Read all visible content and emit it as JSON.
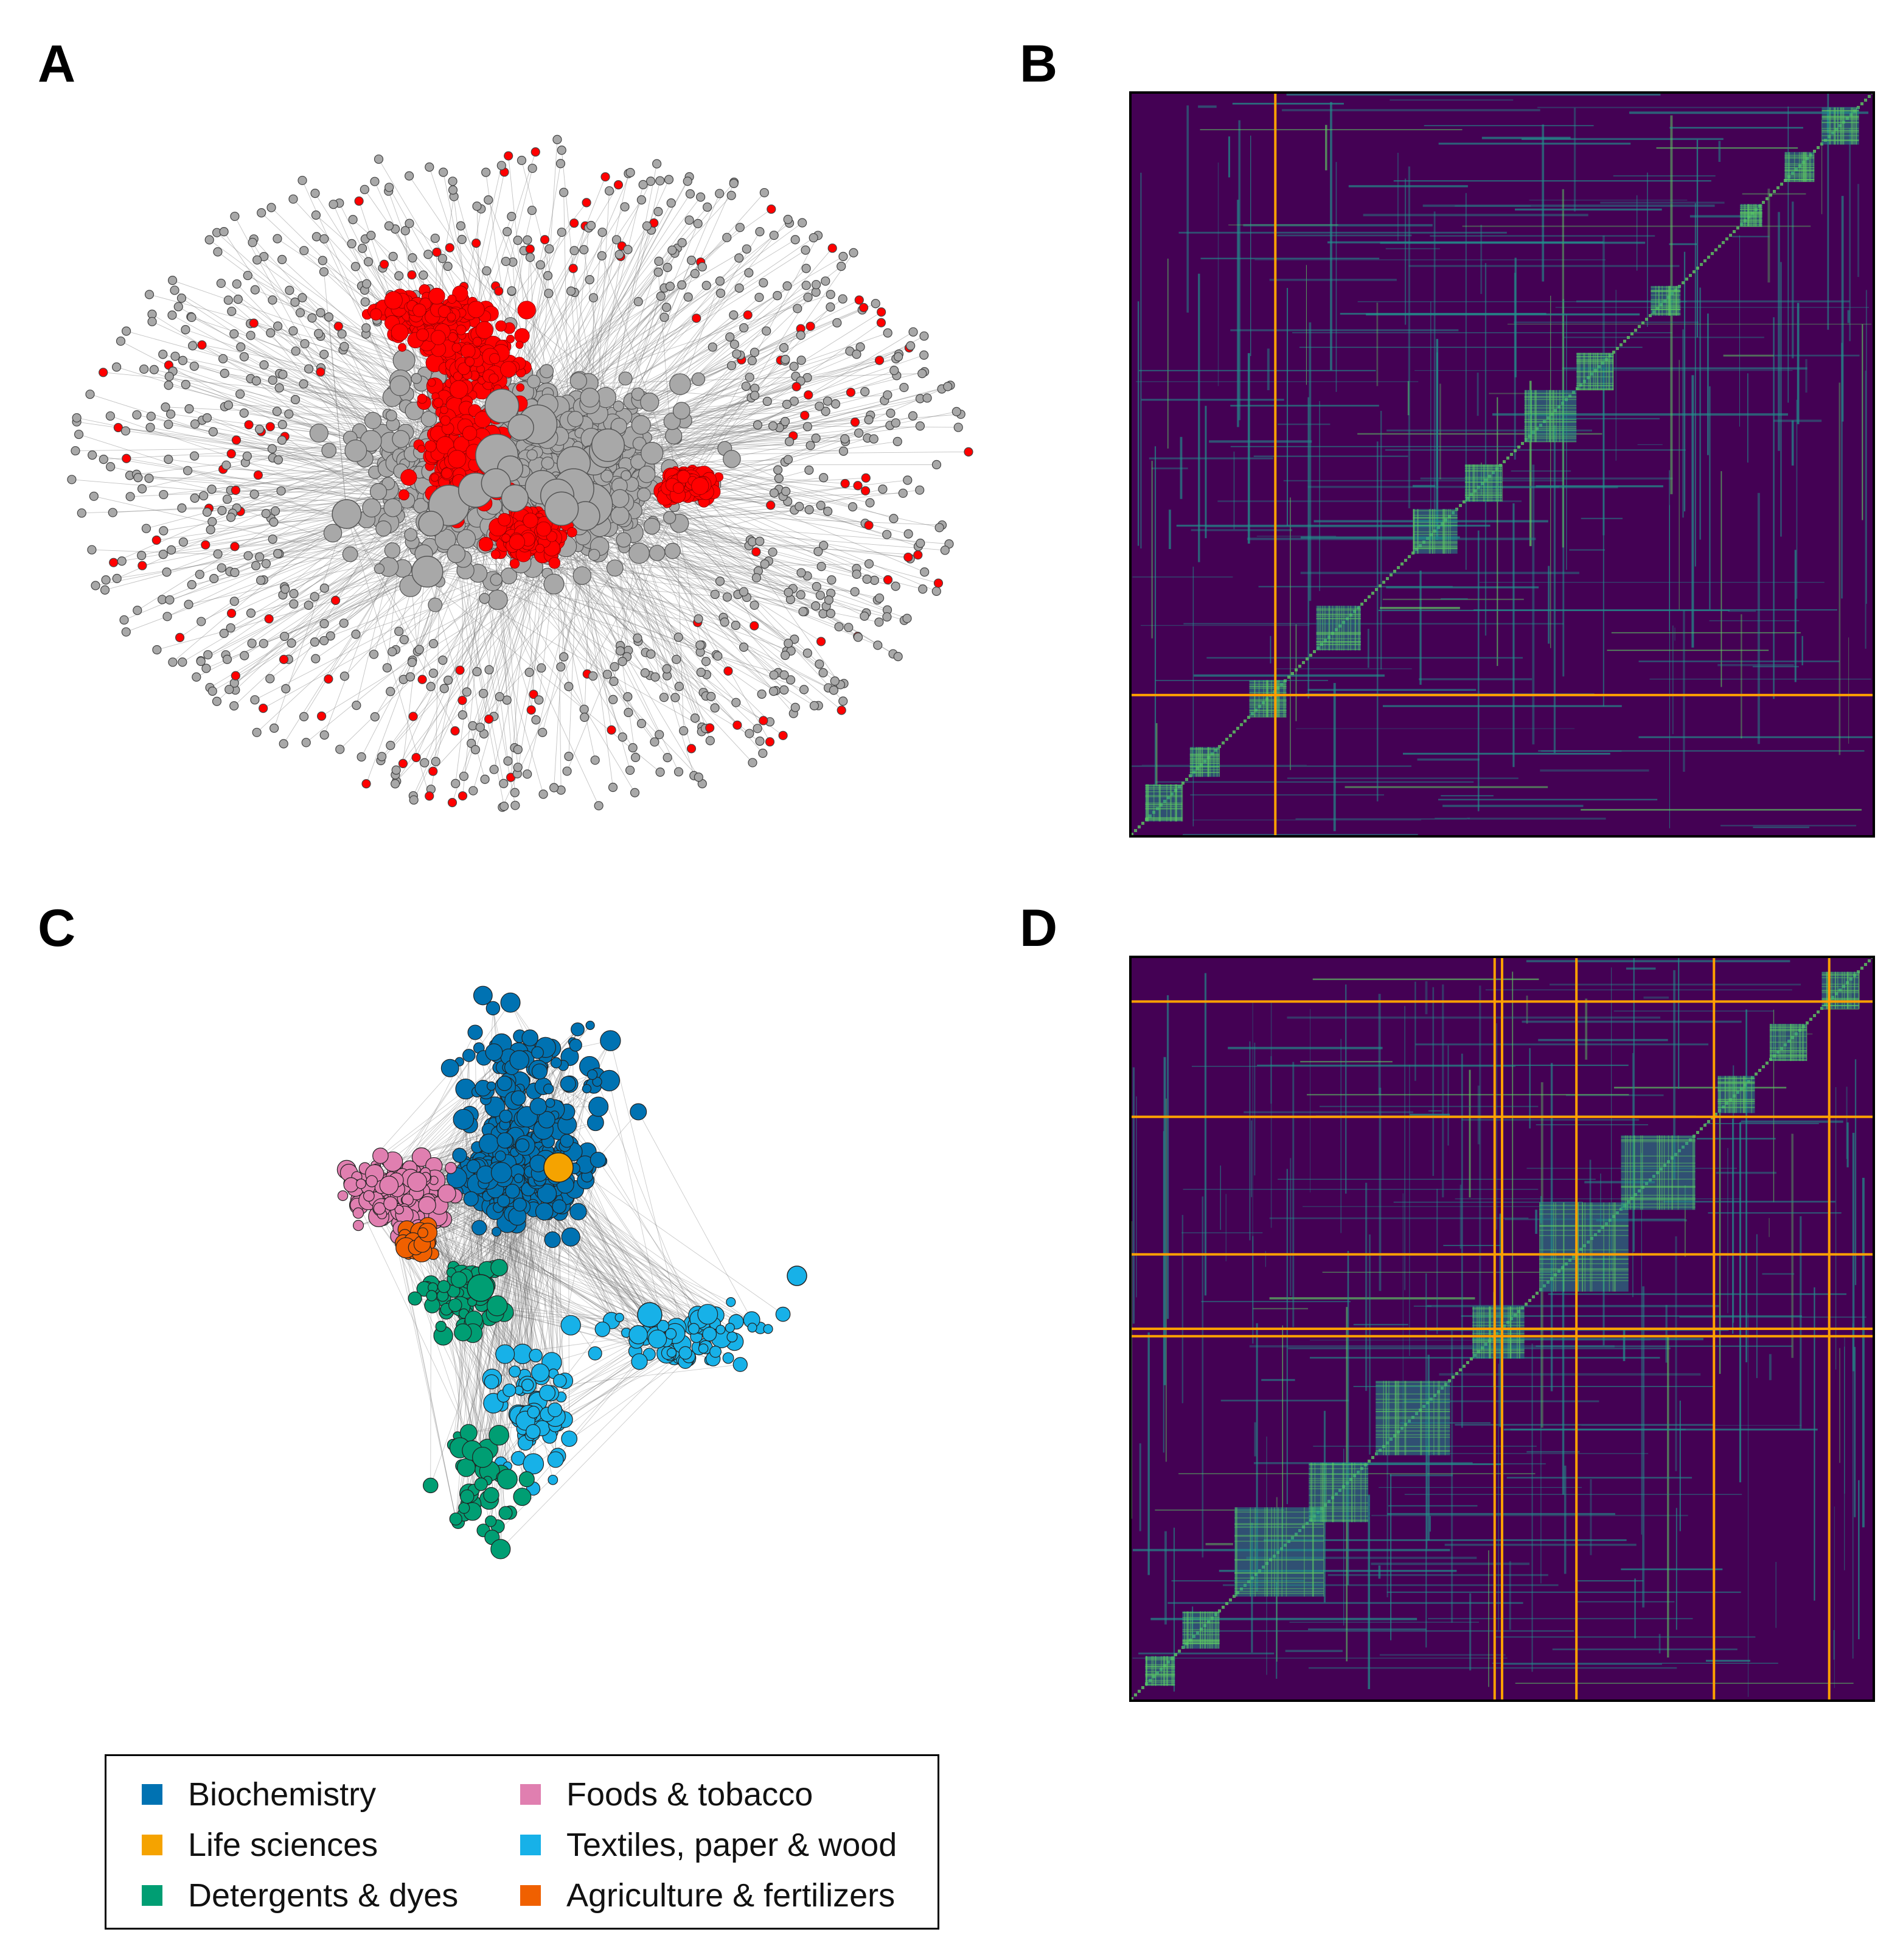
{
  "panels": {
    "a": {
      "label": "A",
      "highlight_color": "#ff0000",
      "node_color": "#a8a8a8"
    },
    "b": {
      "label": "B"
    },
    "c": {
      "label": "C"
    },
    "d": {
      "label": "D"
    }
  },
  "matrix_colors": {
    "background": "#440154",
    "mid": "#21918c",
    "high": "#5ec962",
    "peak": "#c8e020",
    "divider": "#ffa000"
  },
  "legend": {
    "items": [
      {
        "label": "Biochemistry",
        "color": "#0072b2"
      },
      {
        "label": "Life sciences",
        "color": "#f5a300"
      },
      {
        "label": "Detergents & dyes",
        "color": "#009e73"
      },
      {
        "label": "Foods & tobacco",
        "color": "#e07fb0"
      },
      {
        "label": "Textiles, paper & wood",
        "color": "#17b1e8"
      },
      {
        "label": "Agriculture & fertilizers",
        "color": "#f06000"
      }
    ]
  }
}
